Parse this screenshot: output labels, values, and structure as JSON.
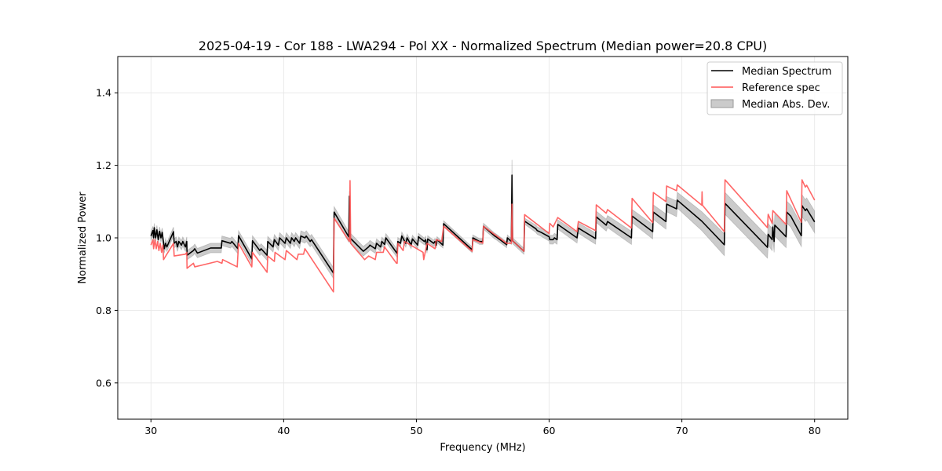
{
  "chart_data": {
    "type": "line",
    "title": "2025-04-19 - Cor 188 - LWA294 - Pol XX - Normalized Spectrum (Median power=20.8 CPU)",
    "xlabel": "Frequency (MHz)",
    "ylabel": "Normalized Power",
    "xlim": [
      27.5,
      82.5
    ],
    "ylim": [
      0.5,
      1.5
    ],
    "xticks": [
      30,
      40,
      50,
      60,
      70,
      80
    ],
    "xtick_labels": [
      "30",
      "40",
      "50",
      "60",
      "70",
      "80"
    ],
    "yticks": [
      0.6,
      0.8,
      1.0,
      1.2,
      1.4
    ],
    "ytick_labels": [
      "0.6",
      "0.8",
      "1.0",
      "1.2",
      "1.4"
    ],
    "grid": true,
    "legend_position": "top-right",
    "legend": [
      "Median Spectrum",
      "Reference spec",
      "Median Abs. Dev."
    ],
    "colors": {
      "median": "#000000",
      "reference": "#ff5555",
      "mad": "#a0a0a0"
    },
    "series": [
      {
        "name": "Median Spectrum",
        "points": [
          [
            30.0,
            1.005
          ],
          [
            30.15,
            1.02
          ],
          [
            30.2,
            1.0
          ],
          [
            30.25,
            1.028
          ],
          [
            30.35,
            1.0
          ],
          [
            30.45,
            1.022
          ],
          [
            30.55,
            0.995
          ],
          [
            30.65,
            1.018
          ],
          [
            30.75,
            1.0
          ],
          [
            30.85,
            1.015
          ],
          [
            30.95,
            0.985
          ],
          [
            31.0,
            0.97
          ],
          [
            31.1,
            0.985
          ],
          [
            31.2,
            0.975
          ],
          [
            31.7,
            1.017
          ],
          [
            31.75,
            0.985
          ],
          [
            31.9,
            0.99
          ],
          [
            32.0,
            0.975
          ],
          [
            32.1,
            0.99
          ],
          [
            32.3,
            0.98
          ],
          [
            32.4,
            0.99
          ],
          [
            32.6,
            0.975
          ],
          [
            32.7,
            0.99
          ],
          [
            32.72,
            0.952
          ],
          [
            33.2,
            0.965
          ],
          [
            33.3,
            0.97
          ],
          [
            33.5,
            0.958
          ],
          [
            34.5,
            0.972
          ],
          [
            35.3,
            0.972
          ],
          [
            35.35,
            0.992
          ],
          [
            36.0,
            0.985
          ],
          [
            36.1,
            0.99
          ],
          [
            36.55,
            0.97
          ],
          [
            36.6,
            1.006
          ],
          [
            37.6,
            0.942
          ],
          [
            37.65,
            0.992
          ],
          [
            38.2,
            0.965
          ],
          [
            38.3,
            0.97
          ],
          [
            38.75,
            0.952
          ],
          [
            38.8,
            0.99
          ],
          [
            39.2,
            0.975
          ],
          [
            39.3,
            0.995
          ],
          [
            39.6,
            0.98
          ],
          [
            39.7,
            1.0
          ],
          [
            40.1,
            0.985
          ],
          [
            40.2,
            1.0
          ],
          [
            40.5,
            0.985
          ],
          [
            40.6,
            1.0
          ],
          [
            40.8,
            0.99
          ],
          [
            40.9,
            1.0
          ],
          [
            41.2,
            0.985
          ],
          [
            41.3,
            1.005
          ],
          [
            41.6,
            1.0
          ],
          [
            41.7,
            1.005
          ],
          [
            42.0,
            0.99
          ],
          [
            42.1,
            0.995
          ],
          [
            43.75,
            0.903
          ],
          [
            43.8,
            1.071
          ],
          [
            44.9,
            1.003
          ],
          [
            44.95,
            1.115
          ],
          [
            45.0,
            1.0
          ],
          [
            46.0,
            0.963
          ],
          [
            46.4,
            0.975
          ],
          [
            46.5,
            0.98
          ],
          [
            46.9,
            0.97
          ],
          [
            47.0,
            0.985
          ],
          [
            47.3,
            0.975
          ],
          [
            47.4,
            0.99
          ],
          [
            47.6,
            0.982
          ],
          [
            47.7,
            1.0
          ],
          [
            48.55,
            0.957
          ],
          [
            48.6,
            0.99
          ],
          [
            48.8,
            0.985
          ],
          [
            48.9,
            1.005
          ],
          [
            49.2,
            0.985
          ],
          [
            49.3,
            1.0
          ],
          [
            49.6,
            0.98
          ],
          [
            49.7,
            0.997
          ],
          [
            50.1,
            0.98
          ],
          [
            50.15,
            1.003
          ],
          [
            50.6,
            0.99
          ],
          [
            50.7,
            0.995
          ],
          [
            50.8,
            0.967
          ],
          [
            50.85,
            0.997
          ],
          [
            51.3,
            0.985
          ],
          [
            51.4,
            0.99
          ],
          [
            51.5,
            0.98
          ],
          [
            51.55,
            0.995
          ],
          [
            52.0,
            0.98
          ],
          [
            52.05,
            1.039
          ],
          [
            54.2,
            0.967
          ],
          [
            54.25,
            1.0
          ],
          [
            54.75,
            0.99
          ],
          [
            55.0,
            0.99
          ],
          [
            55.05,
            1.032
          ],
          [
            55.9,
            1.005
          ],
          [
            56.0,
            1.003
          ],
          [
            56.8,
            0.981
          ],
          [
            56.85,
            1.0
          ],
          [
            57.15,
            0.99
          ],
          [
            57.2,
            1.173
          ],
          [
            57.25,
            0.992
          ],
          [
            58.1,
            0.963
          ],
          [
            58.15,
            1.046
          ],
          [
            59.0,
            1.025
          ],
          [
            59.1,
            1.02
          ],
          [
            59.4,
            1.015
          ],
          [
            60.0,
            1.003
          ],
          [
            60.05,
            0.995
          ],
          [
            60.3,
            0.995
          ],
          [
            60.4,
            1.0
          ],
          [
            60.6,
            0.995
          ],
          [
            60.65,
            1.037
          ],
          [
            62.1,
            1.0
          ],
          [
            62.2,
            1.027
          ],
          [
            63.5,
            0.998
          ],
          [
            63.55,
            1.058
          ],
          [
            64.3,
            1.035
          ],
          [
            64.4,
            1.045
          ],
          [
            66.2,
            1.0
          ],
          [
            66.25,
            1.06
          ],
          [
            67.8,
            1.017
          ],
          [
            67.85,
            1.071
          ],
          [
            68.8,
            1.045
          ],
          [
            68.85,
            1.093
          ],
          [
            69.6,
            1.08
          ],
          [
            69.65,
            1.104
          ],
          [
            71.5,
            1.046
          ],
          [
            73.2,
            0.981
          ],
          [
            73.25,
            1.095
          ],
          [
            76.45,
            0.974
          ],
          [
            76.5,
            1.01
          ],
          [
            76.8,
            0.995
          ],
          [
            76.85,
            1.03
          ],
          [
            76.95,
            0.99
          ],
          [
            77.0,
            1.035
          ],
          [
            77.85,
            1.003
          ],
          [
            77.9,
            1.071
          ],
          [
            78.2,
            1.06
          ],
          [
            79.0,
            1.006
          ],
          [
            79.05,
            1.089
          ],
          [
            79.3,
            1.075
          ],
          [
            79.4,
            1.08
          ],
          [
            80.0,
            1.044
          ]
        ]
      },
      {
        "name": "Reference spec",
        "points": [
          [
            30.0,
            0.98
          ],
          [
            30.15,
            0.995
          ],
          [
            30.2,
            0.97
          ],
          [
            30.3,
            0.995
          ],
          [
            30.4,
            0.97
          ],
          [
            30.5,
            0.99
          ],
          [
            30.6,
            0.965
          ],
          [
            30.7,
            0.985
          ],
          [
            30.8,
            0.96
          ],
          [
            30.9,
            0.98
          ],
          [
            30.95,
            0.94
          ],
          [
            31.7,
            0.985
          ],
          [
            31.75,
            0.95
          ],
          [
            32.6,
            0.955
          ],
          [
            32.7,
            0.96
          ],
          [
            32.72,
            0.916
          ],
          [
            33.2,
            0.93
          ],
          [
            33.3,
            0.92
          ],
          [
            35.0,
            0.935
          ],
          [
            35.35,
            0.93
          ],
          [
            35.4,
            0.94
          ],
          [
            36.5,
            0.92
          ],
          [
            36.6,
            0.985
          ],
          [
            37.6,
            0.92
          ],
          [
            37.65,
            0.96
          ],
          [
            38.75,
            0.905
          ],
          [
            38.8,
            0.95
          ],
          [
            39.3,
            0.935
          ],
          [
            39.35,
            0.96
          ],
          [
            40.1,
            0.94
          ],
          [
            40.2,
            0.965
          ],
          [
            41.0,
            0.94
          ],
          [
            41.1,
            0.955
          ],
          [
            41.5,
            0.955
          ],
          [
            41.6,
            0.97
          ],
          [
            43.75,
            0.851
          ],
          [
            43.8,
            1.054
          ],
          [
            44.95,
            0.99
          ],
          [
            45.0,
            1.158
          ],
          [
            45.05,
            0.985
          ],
          [
            46.1,
            0.94
          ],
          [
            46.4,
            0.95
          ],
          [
            46.9,
            0.94
          ],
          [
            47.0,
            0.96
          ],
          [
            47.5,
            0.96
          ],
          [
            47.6,
            0.975
          ],
          [
            48.5,
            0.93
          ],
          [
            48.55,
            0.93
          ],
          [
            48.6,
            0.985
          ],
          [
            49.0,
            0.965
          ],
          [
            49.1,
            0.99
          ],
          [
            50.5,
            0.96
          ],
          [
            50.55,
            0.94
          ],
          [
            50.8,
            0.985
          ],
          [
            51.4,
            0.97
          ],
          [
            51.5,
            0.995
          ],
          [
            51.9,
            0.99
          ],
          [
            52.05,
            1.032
          ],
          [
            54.2,
            0.963
          ],
          [
            54.25,
            0.995
          ],
          [
            55.0,
            0.985
          ],
          [
            55.05,
            1.032
          ],
          [
            56.8,
            0.985
          ],
          [
            57.15,
            0.985
          ],
          [
            57.2,
            1.093
          ],
          [
            57.25,
            0.992
          ],
          [
            58.1,
            0.963
          ],
          [
            58.15,
            1.064
          ],
          [
            60.0,
            1.012
          ],
          [
            60.05,
            1.04
          ],
          [
            60.3,
            1.03
          ],
          [
            60.65,
            1.056
          ],
          [
            62.1,
            1.017
          ],
          [
            62.2,
            1.045
          ],
          [
            63.5,
            1.02
          ],
          [
            63.55,
            1.091
          ],
          [
            64.3,
            1.068
          ],
          [
            64.4,
            1.078
          ],
          [
            66.2,
            1.027
          ],
          [
            66.25,
            1.109
          ],
          [
            67.8,
            1.042
          ],
          [
            67.85,
            1.125
          ],
          [
            68.8,
            1.1
          ],
          [
            68.85,
            1.143
          ],
          [
            69.6,
            1.13
          ],
          [
            69.65,
            1.146
          ],
          [
            71.5,
            1.09
          ],
          [
            71.52,
            1.127
          ],
          [
            71.55,
            1.09
          ],
          [
            73.2,
            1.017
          ],
          [
            73.25,
            1.16
          ],
          [
            76.45,
            1.028
          ],
          [
            76.5,
            1.065
          ],
          [
            76.8,
            1.04
          ],
          [
            76.85,
            1.075
          ],
          [
            77.85,
            1.037
          ],
          [
            77.9,
            1.13
          ],
          [
            79.0,
            1.043
          ],
          [
            79.05,
            1.16
          ],
          [
            79.3,
            1.14
          ],
          [
            79.4,
            1.145
          ],
          [
            80.0,
            1.104
          ]
        ]
      }
    ],
    "mad_halfwidth": [
      [
        30,
        0.012
      ],
      [
        44,
        0.015
      ],
      [
        52,
        0.008
      ],
      [
        57.15,
        0.008
      ],
      [
        57.2,
        0.042
      ],
      [
        57.25,
        0.008
      ],
      [
        58,
        0.008
      ],
      [
        60,
        0.012
      ],
      [
        66,
        0.018
      ],
      [
        70,
        0.022
      ],
      [
        73,
        0.03
      ],
      [
        80,
        0.03
      ]
    ]
  }
}
